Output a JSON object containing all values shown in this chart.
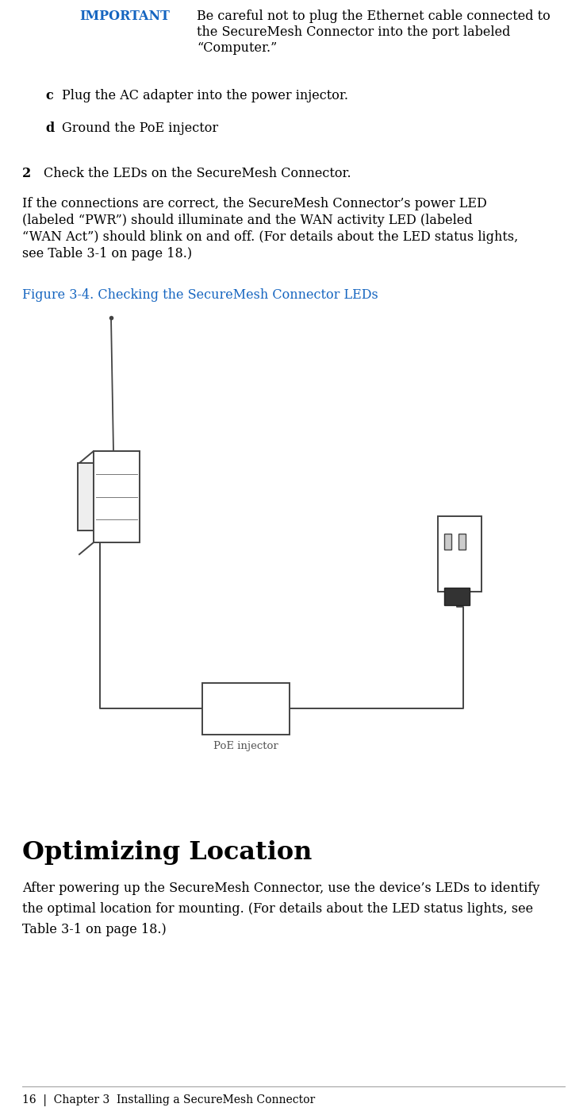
{
  "bg_color": "#ffffff",
  "text_color": "#000000",
  "blue_color": "#1565C0",
  "important_label": "IMPORTANT",
  "item_c_label": "c",
  "item_c_text": "Plug the AC adapter into the power injector.",
  "item_d_label": "d",
  "item_d_text": "Ground the PoE injector",
  "step2_label": "2",
  "step2_text": "Check the LEDs on the SecureMesh Connector.",
  "step2_body_lines": [
    "If the connections are correct, the SecureMesh Connector’s power LED",
    "(labeled “PWR”) should illuminate and the WAN activity LED (labeled",
    "“WAN Act”) should blink on and off. (For details about the LED status lights,",
    "see Table 3-1 on page 18.)"
  ],
  "figure_caption": "Figure 3-4. Checking the SecureMesh Connector LEDs",
  "section_title": "Optimizing Location",
  "section_body_lines": [
    "After powering up the SecureMesh Connector, use the device’s LEDs to identify",
    "the optimal location for mounting. (For details about the LED status lights, see",
    "Table 3-1 on page 18.)"
  ],
  "footer_text": "16  |  Chapter 3  Installing a SecureMesh Connector",
  "poe_label": "PoE injector",
  "imp_line1": "Be careful not to plug the Ethernet cable connected to",
  "imp_line2": "the SecureMesh Connector into the port labeled",
  "imp_line3": "“Computer.”"
}
